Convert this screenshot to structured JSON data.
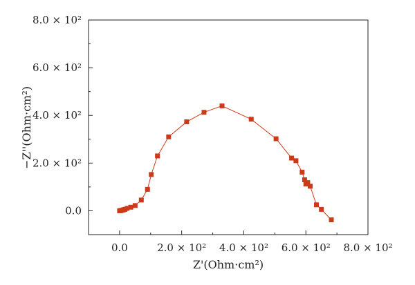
{
  "chart_data": {
    "type": "scatter",
    "xlabel": "Z'(Ohm·cm²)",
    "ylabel": "−Z''(Ohm·cm²)",
    "xlim": [
      -100,
      800
    ],
    "ylim": [
      -100,
      800
    ],
    "x_tick_labels": [
      "0.0",
      "2.0 × 10²",
      "4.0 × 10²",
      "6.0 × 10²",
      "8.0 × 10²"
    ],
    "y_tick_labels": [
      "0.0",
      "2.0 × 10²",
      "4.0 × 10²",
      "6.0 × 10²",
      "8.0 × 10²"
    ],
    "color": "#cc3a1a",
    "marker": "square",
    "connected": true,
    "grid": false,
    "series": [
      {
        "x": [
          0,
          4,
          8,
          12,
          17,
          24,
          36,
          50,
          70,
          90,
          102,
          122,
          158,
          216,
          272,
          330,
          424,
          504,
          554,
          568,
          588,
          596,
          600,
          606,
          614,
          634,
          650,
          682
        ],
        "y": [
          0,
          1,
          2,
          4,
          6,
          10,
          15,
          22,
          45,
          90,
          152,
          230,
          310,
          373,
          413,
          440,
          384,
          302,
          221,
          210,
          162,
          130,
          112,
          118,
          103,
          25,
          6,
          -38
        ]
      }
    ]
  }
}
